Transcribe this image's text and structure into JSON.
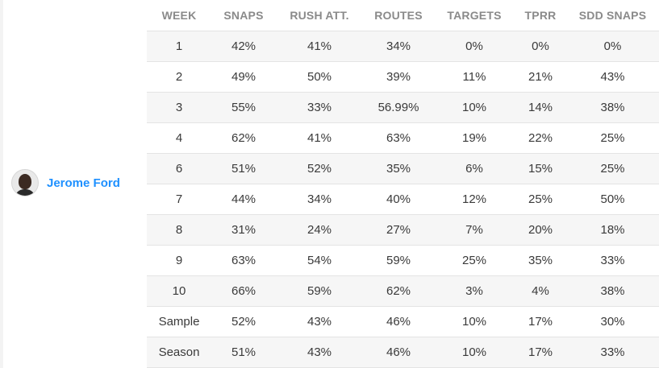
{
  "player": {
    "name": "Jerome Ford"
  },
  "table": {
    "headers": [
      "WEEK",
      "SNAPS",
      "RUSH ATT.",
      "ROUTES",
      "TARGETS",
      "TPRR",
      "SDD SNAPS"
    ],
    "rows": [
      [
        "1",
        "42%",
        "41%",
        "34%",
        "0%",
        "0%",
        "0%"
      ],
      [
        "2",
        "49%",
        "50%",
        "39%",
        "11%",
        "21%",
        "43%"
      ],
      [
        "3",
        "55%",
        "33%",
        "56.99%",
        "10%",
        "14%",
        "38%"
      ],
      [
        "4",
        "62%",
        "41%",
        "63%",
        "19%",
        "22%",
        "25%"
      ],
      [
        "6",
        "51%",
        "52%",
        "35%",
        "6%",
        "15%",
        "25%"
      ],
      [
        "7",
        "44%",
        "34%",
        "40%",
        "12%",
        "25%",
        "50%"
      ],
      [
        "8",
        "31%",
        "24%",
        "27%",
        "7%",
        "20%",
        "18%"
      ],
      [
        "9",
        "63%",
        "54%",
        "59%",
        "25%",
        "35%",
        "33%"
      ],
      [
        "10",
        "66%",
        "59%",
        "62%",
        "3%",
        "4%",
        "38%"
      ],
      [
        "Sample",
        "52%",
        "43%",
        "46%",
        "10%",
        "17%",
        "30%"
      ],
      [
        "Season",
        "51%",
        "43%",
        "46%",
        "10%",
        "17%",
        "33%"
      ]
    ]
  }
}
